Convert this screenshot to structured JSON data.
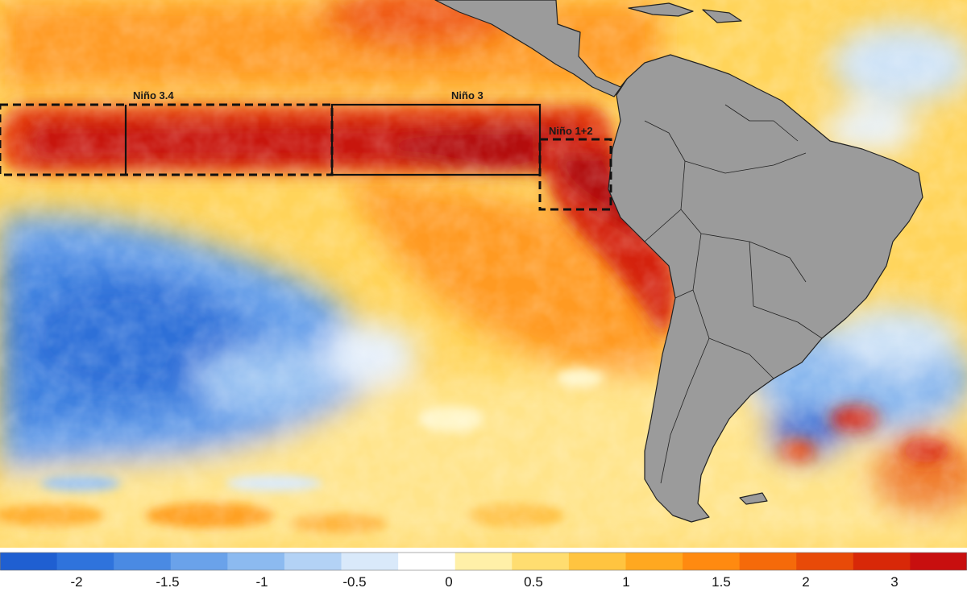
{
  "map": {
    "regions": [
      {
        "id": "nino-3-4",
        "label": "Niño 3.4",
        "border": "dashed"
      },
      {
        "id": "nino-3",
        "label": "Niño 3",
        "border": "solid"
      },
      {
        "id": "nino-1-2",
        "label": "Niño 1+2",
        "border": "dashed"
      }
    ],
    "land_color": "#9b9b9b",
    "coast_color": "#222222"
  },
  "colorbar": {
    "tick_labels": [
      "-2",
      "-1.5",
      "-1",
      "-0.5",
      "0",
      "0.5",
      "1",
      "1.5",
      "2",
      "3"
    ],
    "colors": [
      "#1f5fd1",
      "#2f73dc",
      "#4a8ae3",
      "#6aa2ea",
      "#8cbaf0",
      "#b3d2f5",
      "#d9e9fa",
      "#ffffff",
      "#fff0a8",
      "#ffdd70",
      "#ffc440",
      "#ffa820",
      "#ff8a10",
      "#f56a0a",
      "#e84a08",
      "#d82808",
      "#c80f0f"
    ]
  }
}
